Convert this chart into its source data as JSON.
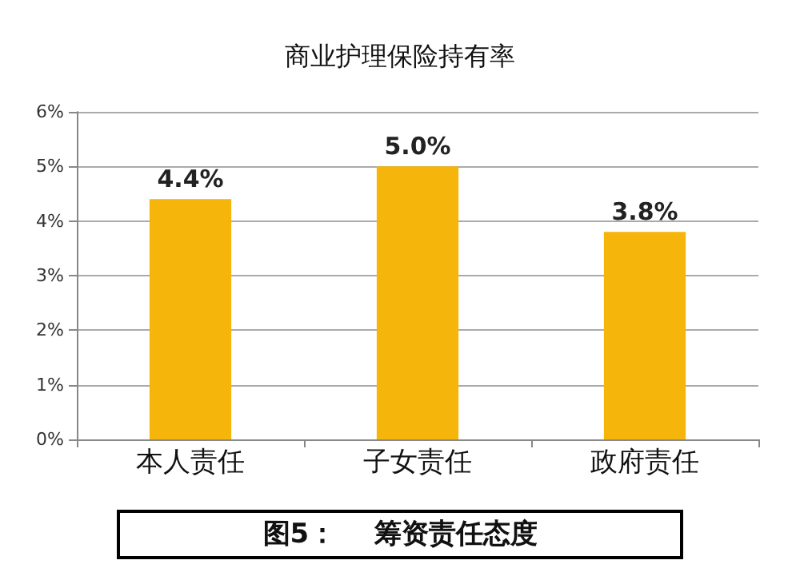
{
  "chart_data": {
    "type": "bar",
    "title": "商业护理保险持有率",
    "categories": [
      "本人责任",
      "子女责任",
      "政府责任"
    ],
    "values": [
      4.4,
      5.0,
      3.8
    ],
    "value_labels": [
      "4.4%",
      "5.0%",
      "3.8%"
    ],
    "color": "#f5b50a",
    "ylim": [
      0,
      6
    ],
    "yticks": [
      {
        "value": 0,
        "label": "0%"
      },
      {
        "value": 1,
        "label": "1%"
      },
      {
        "value": 2,
        "label": "2%"
      },
      {
        "value": 3,
        "label": "3%"
      },
      {
        "value": 4,
        "label": "4%"
      },
      {
        "value": 5,
        "label": "5%"
      },
      {
        "value": 6,
        "label": "6%"
      }
    ],
    "grid": "y",
    "annotations": [
      "图5：    筹资责任态度"
    ]
  }
}
